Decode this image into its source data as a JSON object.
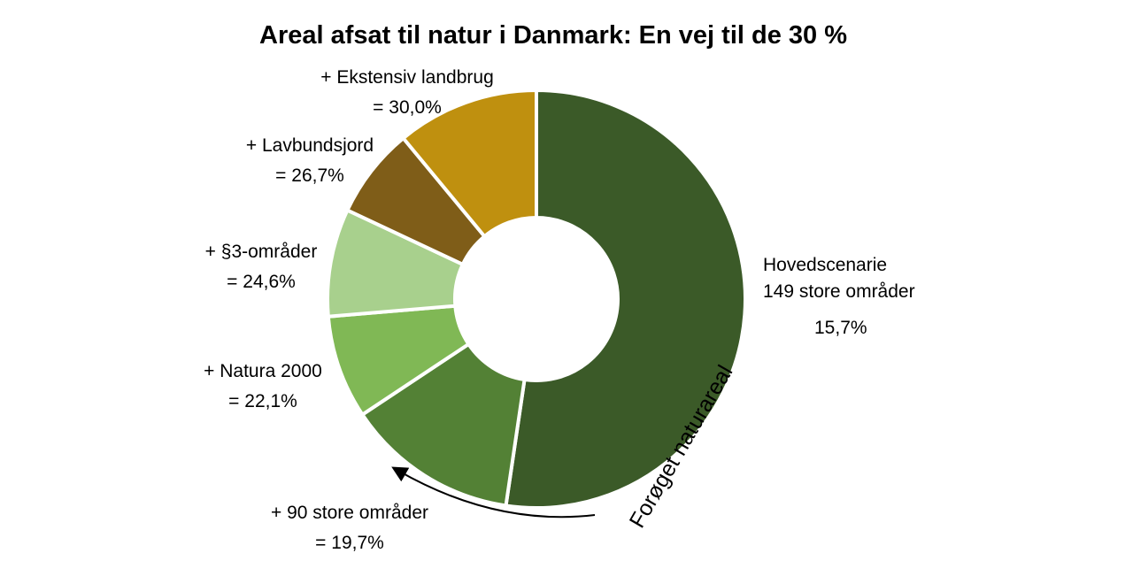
{
  "chart_data": {
    "type": "pie",
    "title": "Areal afsat til natur i Danmark: En vej til de 30 %",
    "slices": [
      {
        "name": "Hovedscenarie\n149 store områder",
        "value_label": "15,7%",
        "value": 15.7,
        "color": "#3b5a28"
      },
      {
        "name": "+ 90 store områder",
        "value_label": "= 19,7%",
        "value": 19.7,
        "color": "#538135"
      },
      {
        "name": "+ Natura 2000",
        "value_label": "= 22,1%",
        "value": 22.1,
        "color": "#80b855"
      },
      {
        "name": "+ §3-områder",
        "value_label": "= 24,6%",
        "value": 24.6,
        "color": "#a8d08d"
      },
      {
        "name": "+ Lavbundsjord",
        "value_label": "= 26,7%",
        "value": 26.7,
        "color": "#7f5d18"
      },
      {
        "name": "+ Ekstensiv landbrug",
        "value_label": "= 30,0%",
        "value": 30.0,
        "color": "#bf900f"
      }
    ],
    "annotation": "Forøget naturareal"
  }
}
